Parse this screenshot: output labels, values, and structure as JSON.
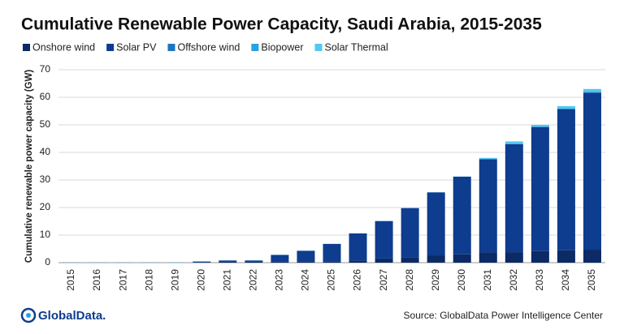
{
  "chart_data": {
    "type": "stacked-bar",
    "title": "Cumulative Renewable Power Capacity, Saudi Arabia, 2015-2035",
    "y_label": "Cumulative renewable power capacity (GW)",
    "categories": [
      "2015",
      "2016",
      "2017",
      "2018",
      "2019",
      "2020",
      "2021",
      "2022",
      "2023",
      "2024",
      "2025",
      "2026",
      "2027",
      "2028",
      "2029",
      "2030",
      "2031",
      "2032",
      "2033",
      "2034",
      "2035"
    ],
    "series": [
      {
        "name": "Onshore wind",
        "color": "#0b2a66",
        "values": [
          0,
          0,
          0,
          0,
          0,
          0,
          0.4,
          0.4,
          0.4,
          0.4,
          0.4,
          0.8,
          1.5,
          2,
          2.5,
          3,
          3.7,
          3.8,
          4.2,
          4.5,
          4.7
        ]
      },
      {
        "name": "Solar PV",
        "color": "#0e3c8e",
        "values": [
          0.05,
          0.05,
          0.05,
          0.05,
          0.05,
          0.4,
          0.4,
          0.4,
          2.4,
          3.9,
          6.4,
          9.8,
          13.6,
          17.8,
          23,
          28.2,
          33.8,
          39.2,
          45,
          51.2,
          57
        ]
      },
      {
        "name": "Offshore wind",
        "color": "#1e74c0",
        "values": [
          0,
          0,
          0,
          0,
          0,
          0,
          0,
          0,
          0,
          0,
          0,
          0,
          0,
          0,
          0,
          0,
          0,
          0,
          0,
          0,
          0
        ]
      },
      {
        "name": "Biopower",
        "color": "#27a2e2",
        "values": [
          0,
          0,
          0,
          0,
          0,
          0,
          0,
          0,
          0,
          0,
          0,
          0,
          0,
          0,
          0,
          0,
          0.1,
          0.2,
          0.2,
          0.3,
          0.3
        ]
      },
      {
        "name": "Solar Thermal",
        "color": "#52c8f2",
        "values": [
          0.05,
          0.05,
          0.05,
          0.05,
          0.05,
          0.1,
          0.05,
          0.05,
          0.05,
          0.05,
          0.05,
          0.05,
          0.05,
          0.05,
          0.05,
          0.05,
          0.4,
          0.8,
          0.6,
          0.8,
          1
        ]
      }
    ],
    "ylim": [
      0,
      70
    ],
    "yticks": [
      0,
      10,
      20,
      30,
      40,
      50,
      60,
      70
    ],
    "grid": true,
    "brand": "GlobalData.",
    "source": "Source: GlobalData Power Intelligence Center"
  }
}
